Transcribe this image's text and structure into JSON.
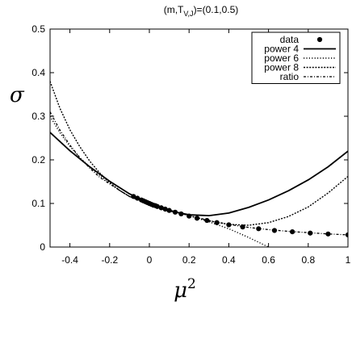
{
  "chart_data": {
    "type": "line",
    "title": {
      "prefix": "(m,T",
      "subscript": "V,J",
      "suffix": ")=(0.1,0.5)"
    },
    "xlabel": {
      "base": "μ",
      "superscript": "2"
    },
    "ylabel": "σ",
    "xlim": [
      -0.5,
      1.0
    ],
    "ylim": [
      0,
      0.5
    ],
    "x_ticks": [
      {
        "value": -0.4,
        "label": "-0.4"
      },
      {
        "value": -0.2,
        "label": "-0.2"
      },
      {
        "value": 0,
        "label": "0"
      },
      {
        "value": 0.2,
        "label": "0.2"
      },
      {
        "value": 0.4,
        "label": "0.4"
      },
      {
        "value": 0.6,
        "label": "0.6"
      },
      {
        "value": 0.8,
        "label": "0.8"
      },
      {
        "value": 1.0,
        "label": "1"
      }
    ],
    "y_ticks": [
      {
        "value": 0,
        "label": "0"
      },
      {
        "value": 0.1,
        "label": "0.1"
      },
      {
        "value": 0.2,
        "label": "0.2"
      },
      {
        "value": 0.3,
        "label": "0.3"
      },
      {
        "value": 0.4,
        "label": "0.4"
      },
      {
        "value": 0.5,
        "label": "0.5"
      }
    ],
    "grid": false,
    "legend_position": "top-right",
    "series": [
      {
        "name": "data",
        "style": "points",
        "x": [
          -0.08,
          -0.06,
          -0.04,
          -0.03,
          -0.02,
          -0.01,
          0.0,
          0.01,
          0.02,
          0.03,
          0.04,
          0.06,
          0.08,
          0.1,
          0.13,
          0.16,
          0.2,
          0.24,
          0.29,
          0.34,
          0.4,
          0.47,
          0.55,
          0.63,
          0.72,
          0.81,
          0.9,
          1.0
        ],
        "y": [
          0.116,
          0.112,
          0.108,
          0.106,
          0.104,
          0.102,
          0.1,
          0.098,
          0.096,
          0.095,
          0.093,
          0.09,
          0.087,
          0.084,
          0.08,
          0.076,
          0.071,
          0.066,
          0.061,
          0.056,
          0.051,
          0.046,
          0.042,
          0.038,
          0.035,
          0.032,
          0.03,
          0.028
        ]
      },
      {
        "name": "power 4",
        "style": "solid",
        "x": [
          -0.5,
          -0.4,
          -0.3,
          -0.2,
          -0.1,
          0.0,
          0.1,
          0.2,
          0.3,
          0.4,
          0.5,
          0.6,
          0.7,
          0.8,
          0.9,
          1.0
        ],
        "y": [
          0.263,
          0.221,
          0.184,
          0.151,
          0.122,
          0.1,
          0.083,
          0.074,
          0.072,
          0.078,
          0.091,
          0.108,
          0.129,
          0.154,
          0.184,
          0.22
        ]
      },
      {
        "name": "power 6",
        "style": "dotted",
        "x": [
          -0.5,
          -0.45,
          -0.4,
          -0.35,
          -0.3,
          -0.25,
          -0.2,
          -0.15,
          -0.1,
          -0.05,
          0.0,
          0.1,
          0.2,
          0.3,
          0.4,
          0.5,
          0.55,
          0.6
        ],
        "y": [
          0.3,
          0.262,
          0.231,
          0.205,
          0.184,
          0.164,
          0.147,
          0.13,
          0.116,
          0.108,
          0.1,
          0.085,
          0.072,
          0.058,
          0.042,
          0.022,
          0.011,
          0.0
        ]
      },
      {
        "name": "power 8",
        "style": "dense-dotted",
        "x": [
          -0.5,
          -0.45,
          -0.4,
          -0.35,
          -0.3,
          -0.25,
          -0.2,
          -0.15,
          -0.1,
          -0.05,
          0.0,
          0.1,
          0.2,
          0.3,
          0.4,
          0.5,
          0.6,
          0.7,
          0.8,
          0.9,
          1.0
        ],
        "y": [
          0.38,
          0.318,
          0.269,
          0.23,
          0.197,
          0.17,
          0.148,
          0.13,
          0.116,
          0.107,
          0.1,
          0.085,
          0.072,
          0.06,
          0.052,
          0.05,
          0.056,
          0.07,
          0.092,
          0.124,
          0.162
        ]
      },
      {
        "name": "ratio",
        "style": "dash-dot",
        "x": [
          -0.5,
          -0.45,
          -0.4,
          -0.35,
          -0.3,
          -0.25,
          -0.2,
          -0.15,
          -0.1,
          -0.05,
          0.0,
          0.1,
          0.2,
          0.3,
          0.4,
          0.5,
          0.6,
          0.7,
          0.8,
          0.9,
          1.0
        ],
        "y": [
          0.31,
          0.268,
          0.234,
          0.205,
          0.181,
          0.16,
          0.145,
          0.13,
          0.116,
          0.107,
          0.1,
          0.085,
          0.072,
          0.061,
          0.052,
          0.045,
          0.04,
          0.036,
          0.033,
          0.03,
          0.028
        ]
      }
    ]
  }
}
